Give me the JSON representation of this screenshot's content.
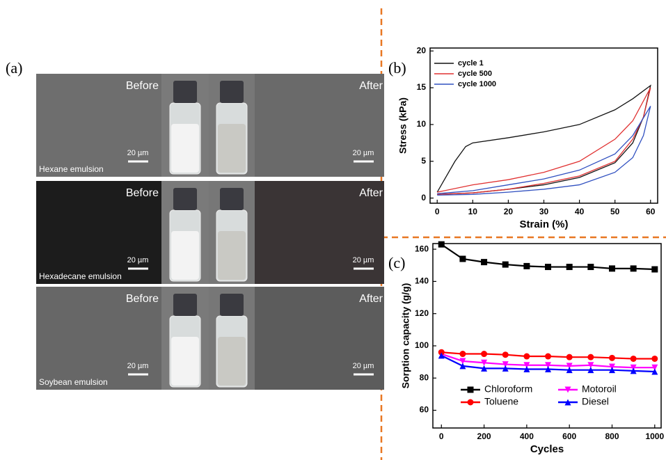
{
  "panel_a": {
    "label": "(a)",
    "rows": [
      {
        "before": "Before",
        "after": "After",
        "scale_left": "20 µm",
        "scale_right": "20 µm",
        "name": "Hexane emulsion"
      },
      {
        "before": "Before",
        "after": "After",
        "scale_left": "20 µm",
        "scale_right": "20 µm",
        "name": "Hexadecane emulsion"
      },
      {
        "before": "Before",
        "after": "After",
        "scale_left": "20 µm",
        "scale_right": "20 µm",
        "name": "Soybean emulsion"
      }
    ]
  },
  "chart_data": [
    {
      "type": "line",
      "label": "(b)",
      "xlabel": "Strain (%)",
      "ylabel": "Stress (kPa)",
      "xlim": [
        -2,
        62
      ],
      "ylim": [
        -0.7,
        20.4
      ],
      "xticks": [
        0,
        10,
        20,
        30,
        40,
        50,
        60
      ],
      "yticks": [
        0,
        5,
        10,
        15,
        20
      ],
      "legend": "upper left",
      "series": [
        {
          "name": "cycle 1",
          "color": "#111111",
          "x": [
            0,
            5,
            8,
            10,
            20,
            30,
            40,
            50,
            55,
            60,
            58,
            55,
            50,
            40,
            30,
            20,
            10,
            0
          ],
          "values": [
            0.8,
            5,
            7,
            7.5,
            8.2,
            9,
            10,
            12,
            13.5,
            15.3,
            11,
            7.5,
            4.8,
            2.8,
            1.8,
            1.2,
            0.7,
            0.5
          ]
        },
        {
          "name": "cycle 500",
          "color": "#e03030",
          "x": [
            0,
            10,
            20,
            30,
            40,
            50,
            55,
            60,
            58,
            55,
            50,
            40,
            30,
            20,
            10,
            0
          ],
          "values": [
            0.8,
            1.8,
            2.5,
            3.5,
            5,
            8,
            10.5,
            15,
            11,
            8,
            5,
            3,
            2,
            1.2,
            0.7,
            0.5
          ]
        },
        {
          "name": "cycle 1000",
          "color": "#3050c0",
          "x": [
            0,
            10,
            20,
            30,
            40,
            50,
            55,
            60,
            58,
            55,
            50,
            40,
            30,
            20,
            10,
            0
          ],
          "values": [
            0.6,
            1,
            1.8,
            2.6,
            3.8,
            6,
            8.5,
            12.5,
            8.5,
            5.5,
            3.5,
            1.8,
            1.2,
            0.8,
            0.5,
            0.4
          ]
        }
      ]
    },
    {
      "type": "line",
      "label": "(c)",
      "xlabel": "Cycles",
      "ylabel": "Sorption capacity (g/g)",
      "xlim": [
        -40,
        1030
      ],
      "ylim": [
        49,
        163.5
      ],
      "xticks": [
        0,
        200,
        400,
        600,
        800,
        1000
      ],
      "yticks": [
        60,
        80,
        100,
        120,
        140,
        160
      ],
      "legend": "lower center",
      "x": [
        0,
        100,
        200,
        300,
        400,
        500,
        600,
        700,
        800,
        900,
        1000
      ],
      "series": [
        {
          "name": "Chloroform",
          "color": "#000000",
          "marker": "square",
          "values": [
            163,
            154,
            152,
            150.5,
            149.5,
            149,
            149,
            149,
            148,
            148,
            147.5
          ]
        },
        {
          "name": "Motoroil",
          "color": "#ff00ff",
          "marker": "triangle-down",
          "values": [
            95,
            90.5,
            89.5,
            88.5,
            88,
            88,
            87.5,
            88,
            87,
            86.5,
            86.5
          ]
        },
        {
          "name": "Toluene",
          "color": "#ff0000",
          "marker": "circle",
          "values": [
            96,
            95,
            95,
            94.5,
            93.5,
            93.5,
            93,
            93,
            92.5,
            92,
            92
          ]
        },
        {
          "name": "Diesel",
          "color": "#0000ff",
          "marker": "triangle-up",
          "values": [
            94,
            87.5,
            86,
            86,
            85.5,
            85.5,
            85,
            85,
            85,
            84.5,
            84
          ]
        }
      ]
    }
  ]
}
